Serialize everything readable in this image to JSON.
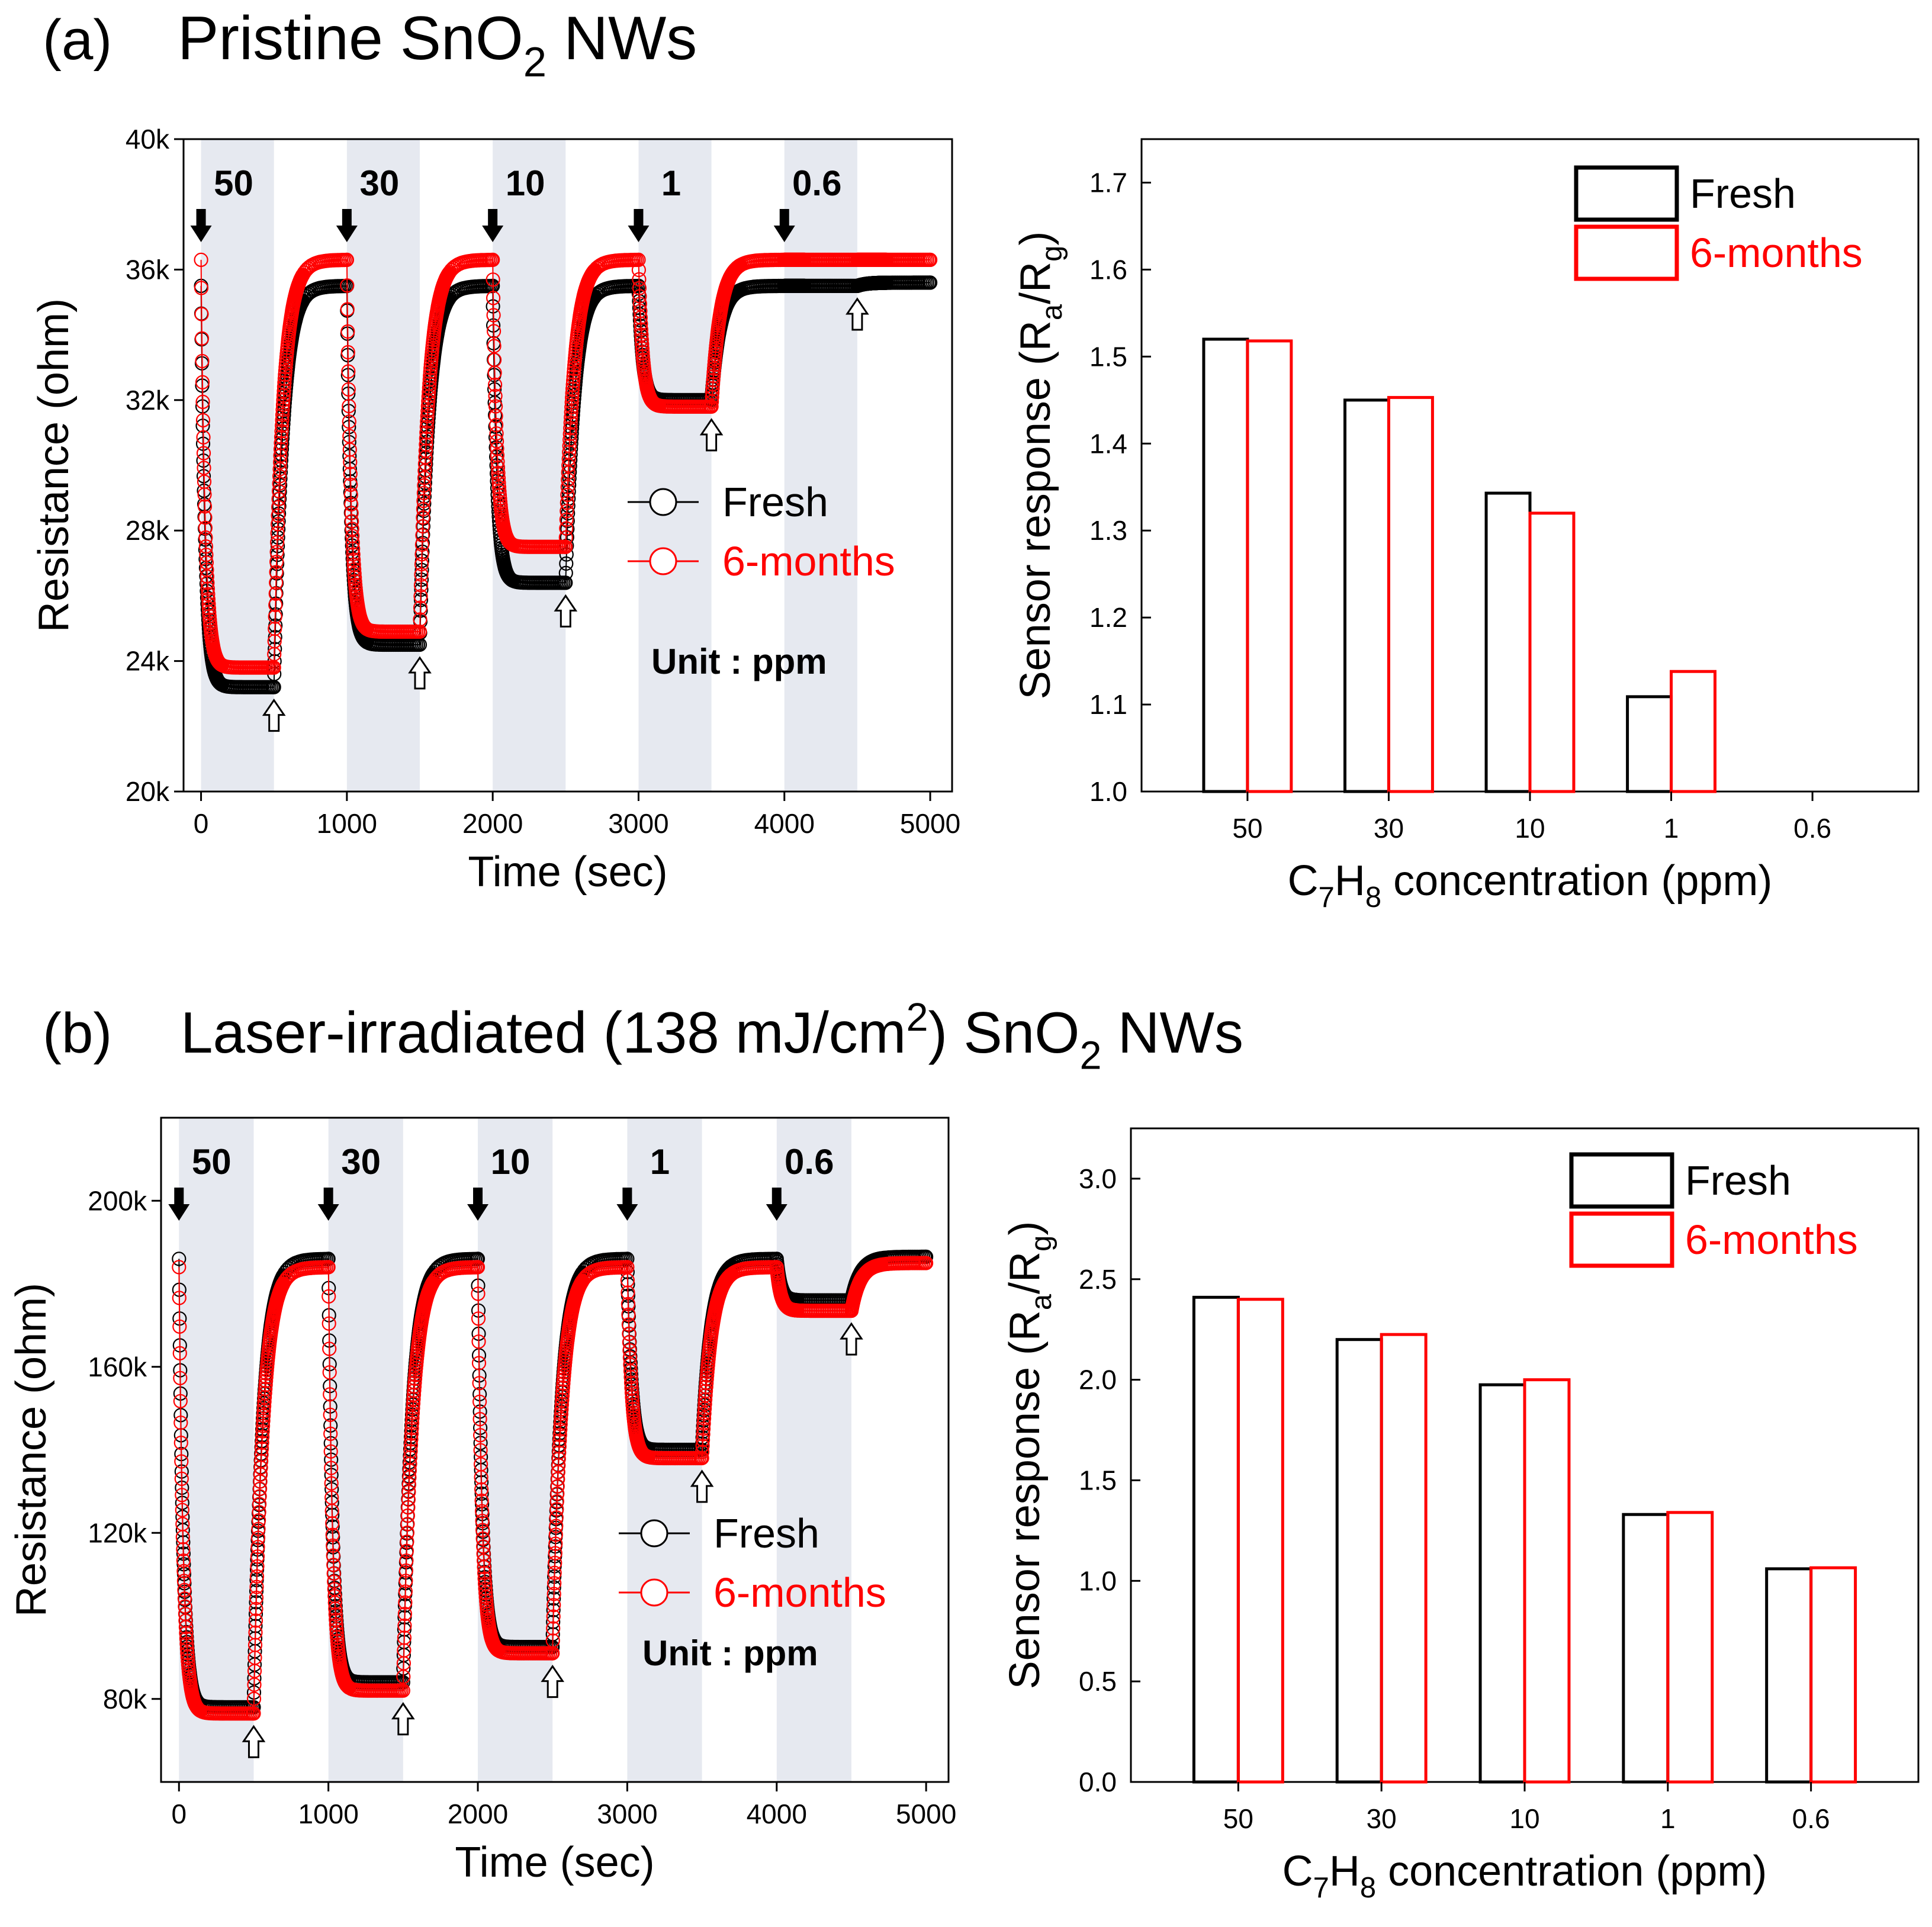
{
  "chart_data": [
    {
      "panel_id": "a",
      "type": "line",
      "panel_label": "(a)",
      "title": {
        "pre": "Pristine SnO",
        "sub": "2",
        "post": " NWs"
      },
      "xlabel": "Time (sec)",
      "ylabel": "Resistance (ohm)",
      "xlim": [
        -120,
        5150
      ],
      "ylim": [
        20000,
        40000
      ],
      "xticks": [
        0,
        1000,
        2000,
        3000,
        4000,
        5000
      ],
      "xticklabels": [
        "0",
        "1000",
        "2000",
        "3000",
        "4000",
        "5000"
      ],
      "yticks": [
        20000,
        24000,
        28000,
        32000,
        36000,
        40000
      ],
      "yticklabels": [
        "20k",
        "24k",
        "28k",
        "32k",
        "36k",
        "40k"
      ],
      "exposure_bands": [
        [
          0,
          500
        ],
        [
          1000,
          1500
        ],
        [
          2000,
          2500
        ],
        [
          3000,
          3500
        ],
        [
          4000,
          4500
        ]
      ],
      "concentration_labels": [
        "50",
        "30",
        "10",
        "1",
        "0.6"
      ],
      "unit_note": "Unit : ppm",
      "legend": [
        "Fresh",
        "6-months"
      ],
      "series": [
        {
          "name": "Fresh",
          "color": "#000000",
          "baseline": 35500,
          "minima": [
            23200,
            24500,
            26400,
            32000,
            35500
          ],
          "tail": 35600
        },
        {
          "name": "6-months",
          "color": "#ff0000",
          "baseline": 36300,
          "minima": [
            23800,
            24900,
            27500,
            31800,
            36300
          ],
          "tail": 36300
        }
      ]
    },
    {
      "panel_id": "b",
      "type": "line",
      "panel_label": "(b)",
      "title": {
        "pre": "Laser-irradiated (138 mJ/cm",
        "sup": "2",
        "post2": ") SnO",
        "sub": "2",
        "post": " NWs"
      },
      "xlabel": "Time (sec)",
      "ylabel": "Resistance (ohm)",
      "xlim": [
        -120,
        5150
      ],
      "ylim": [
        60000,
        220000
      ],
      "xticks": [
        0,
        1000,
        2000,
        3000,
        4000,
        5000
      ],
      "xticklabels": [
        "0",
        "1000",
        "2000",
        "3000",
        "4000",
        "5000"
      ],
      "yticks": [
        80000,
        120000,
        160000,
        200000
      ],
      "yticklabels": [
        "80k",
        "120k",
        "160k",
        "200k"
      ],
      "exposure_bands": [
        [
          0,
          500
        ],
        [
          1000,
          1500
        ],
        [
          2000,
          2500
        ],
        [
          3000,
          3500
        ],
        [
          4000,
          4500
        ]
      ],
      "concentration_labels": [
        "50",
        "30",
        "10",
        "1",
        "0.6"
      ],
      "unit_note": "Unit : ppm",
      "legend": [
        "Fresh",
        "6-months"
      ],
      "series": [
        {
          "name": "Fresh",
          "color": "#000000",
          "baseline": 186000,
          "minima": [
            78000,
            84000,
            92500,
            140000,
            176000
          ],
          "tail": 186500
        },
        {
          "name": "6-months",
          "color": "#ff0000",
          "baseline": 184000,
          "minima": [
            76500,
            82000,
            91000,
            138000,
            173500
          ],
          "tail": 185000
        }
      ]
    },
    {
      "panel_id": "a2",
      "type": "bar",
      "xlabel": {
        "pre": "C",
        "sub1": "7",
        "mid": "H",
        "sub2": "8",
        "post": " concentration (ppm)"
      },
      "ylabel": {
        "pre": "Sensor response (R",
        "sub1": "a",
        "mid": "/R",
        "sub2": "g",
        "post": ")"
      },
      "categories": [
        "50",
        "30",
        "10",
        "1",
        "0.6"
      ],
      "ylim": [
        1.0,
        1.75
      ],
      "yticks": [
        1.0,
        1.1,
        1.2,
        1.3,
        1.4,
        1.5,
        1.6,
        1.7
      ],
      "yticklabels": [
        "1.0",
        "1.1",
        "1.2",
        "1.3",
        "1.4",
        "1.5",
        "1.6",
        "1.7"
      ],
      "legend": [
        "Fresh",
        "6-months"
      ],
      "series": [
        {
          "name": "Fresh",
          "color": "#000000",
          "values": [
            1.52,
            1.45,
            1.343,
            1.109,
            null
          ]
        },
        {
          "name": "6-months",
          "color": "#ff0000",
          "values": [
            1.518,
            1.453,
            1.32,
            1.138,
            null
          ]
        }
      ]
    },
    {
      "panel_id": "b2",
      "type": "bar",
      "xlabel": {
        "pre": "C",
        "sub1": "7",
        "mid": "H",
        "sub2": "8",
        "post": " concentration (ppm)"
      },
      "ylabel": {
        "pre": "Sensor response (R",
        "sub1": "a",
        "mid": "/R",
        "sub2": "g",
        "post": ")"
      },
      "categories": [
        "50",
        "30",
        "10",
        "1",
        "0.6"
      ],
      "ylim": [
        0.0,
        3.25
      ],
      "yticks": [
        0.0,
        0.5,
        1.0,
        1.5,
        2.0,
        2.5,
        3.0
      ],
      "yticklabels": [
        "0.0",
        "0.5",
        "1.0",
        "1.5",
        "2.0",
        "2.5",
        "3.0"
      ],
      "legend": [
        "Fresh",
        "6-months"
      ],
      "series": [
        {
          "name": "Fresh",
          "color": "#000000",
          "values": [
            2.41,
            2.2,
            1.975,
            1.33,
            1.06
          ]
        },
        {
          "name": "6-months",
          "color": "#ff0000",
          "values": [
            2.4,
            2.225,
            2.0,
            1.34,
            1.065
          ]
        }
      ]
    }
  ]
}
